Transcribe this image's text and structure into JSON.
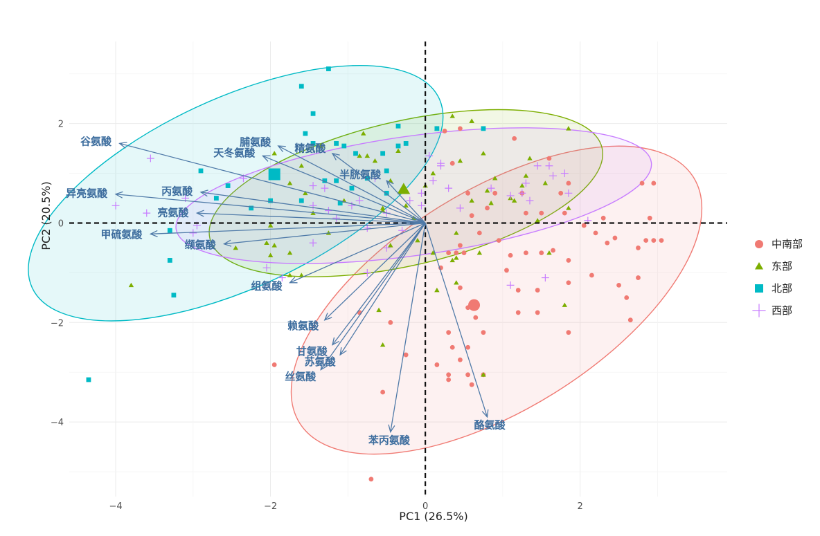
{
  "chart_data": {
    "type": "scatter",
    "subtype": "pca-biplot",
    "xlabel": "PC1 (26.5%)",
    "ylabel": "PC2 (20.5%)",
    "xlim": [
      -4.6,
      3.9
    ],
    "ylim": [
      -5.5,
      3.65
    ],
    "xticks": [
      -4,
      -2,
      0,
      2
    ],
    "yticks": [
      -4,
      -2,
      0,
      2
    ],
    "grid": true,
    "zero_lines": "dashed",
    "legend_position": "right",
    "arrow_color": "#4f7aa8",
    "label_color": "#3d6d9e",
    "series": [
      {
        "name": "中南部",
        "marker": "circle",
        "color": "#f07a73",
        "centroid": [
          0.63,
          -1.65
        ],
        "ellipse": {
          "center": [
            0.92,
            -1.55
          ],
          "rx": 3.0,
          "ry": 2.2,
          "angle_deg": 32
        },
        "points": [
          [
            0.25,
            1.85
          ],
          [
            0.45,
            1.9
          ],
          [
            0.35,
            1.2
          ],
          [
            0.55,
            0.6
          ],
          [
            0.6,
            0.15
          ],
          [
            0.8,
            0.3
          ],
          [
            0.9,
            0.6
          ],
          [
            0.7,
            -0.2
          ],
          [
            0.5,
            -0.6
          ],
          [
            0.3,
            -0.6
          ],
          [
            0.2,
            -0.9
          ],
          [
            0.45,
            -1.3
          ],
          [
            0.55,
            -1.7
          ],
          [
            0.65,
            -1.9
          ],
          [
            0.3,
            -2.2
          ],
          [
            0.75,
            -2.2
          ],
          [
            0.35,
            -2.5
          ],
          [
            0.55,
            -2.5
          ],
          [
            0.45,
            -2.75
          ],
          [
            0.15,
            -2.85
          ],
          [
            0.3,
            -3.05
          ],
          [
            0.55,
            -3.05
          ],
          [
            0.3,
            -3.15
          ],
          [
            0.6,
            -3.25
          ],
          [
            0.75,
            -3.05
          ],
          [
            -0.25,
            -2.65
          ],
          [
            -0.45,
            -2.0
          ],
          [
            -0.55,
            -3.4
          ],
          [
            -0.85,
            -1.8
          ],
          [
            -0.7,
            -5.15
          ],
          [
            -1.95,
            -2.85
          ],
          [
            1.1,
            -0.65
          ],
          [
            1.2,
            -1.35
          ],
          [
            1.45,
            -1.35
          ],
          [
            1.45,
            -1.8
          ],
          [
            1.2,
            -1.8
          ],
          [
            1.3,
            -0.6
          ],
          [
            1.5,
            -0.6
          ],
          [
            1.5,
            0.2
          ],
          [
            1.8,
            0.2
          ],
          [
            1.75,
            0.6
          ],
          [
            1.65,
            -0.55
          ],
          [
            1.85,
            -0.75
          ],
          [
            1.85,
            -1.2
          ],
          [
            1.85,
            -2.2
          ],
          [
            2.05,
            -0.05
          ],
          [
            2.2,
            -0.2
          ],
          [
            2.3,
            0.1
          ],
          [
            2.35,
            -0.4
          ],
          [
            2.45,
            -0.3
          ],
          [
            2.5,
            -1.25
          ],
          [
            2.6,
            -1.5
          ],
          [
            2.65,
            -1.95
          ],
          [
            2.75,
            -0.5
          ],
          [
            2.85,
            -0.35
          ],
          [
            2.9,
            0.1
          ],
          [
            2.95,
            0.8
          ],
          [
            2.8,
            0.8
          ],
          [
            2.95,
            -0.35
          ],
          [
            3.05,
            -0.35
          ],
          [
            2.75,
            -1.1
          ],
          [
            1.15,
            1.7
          ],
          [
            1.25,
            0.6
          ],
          [
            1.6,
            1.3
          ],
          [
            1.85,
            0.8
          ],
          [
            2.15,
            -1.05
          ],
          [
            1.3,
            0.2
          ],
          [
            0.95,
            -0.35
          ],
          [
            1.05,
            -0.95
          ],
          [
            0.4,
            -0.6
          ],
          [
            0.45,
            -0.45
          ]
        ]
      },
      {
        "name": "东部",
        "marker": "triangle",
        "color": "#7cae00",
        "centroid": [
          -0.28,
          0.68
        ],
        "ellipse": {
          "center": [
            -0.25,
            0.6
          ],
          "rx": 2.6,
          "ry": 1.45,
          "angle_deg": 13
        },
        "points": [
          [
            -3.8,
            -1.25
          ],
          [
            -2.45,
            -0.5
          ],
          [
            -2.05,
            -0.4
          ],
          [
            -2.0,
            -0.65
          ],
          [
            -1.95,
            -0.45
          ],
          [
            -1.75,
            -0.6
          ],
          [
            -1.95,
            1.4
          ],
          [
            -2.0,
            -0.05
          ],
          [
            -1.75,
            0.8
          ],
          [
            -1.6,
            1.15
          ],
          [
            -1.35,
            1.55
          ],
          [
            -1.55,
            0.6
          ],
          [
            -1.45,
            0.2
          ],
          [
            -1.25,
            -0.2
          ],
          [
            -1.05,
            0.45
          ],
          [
            -0.85,
            1.35
          ],
          [
            -0.8,
            1.8
          ],
          [
            -0.65,
            1.25
          ],
          [
            -0.55,
            0.3
          ],
          [
            -0.45,
            0.85
          ],
          [
            -0.45,
            -0.45
          ],
          [
            -0.35,
            1.45
          ],
          [
            -0.25,
            0.35
          ],
          [
            -0.15,
            0.1
          ],
          [
            -0.1,
            -0.35
          ],
          [
            0.0,
            0.75
          ],
          [
            0.1,
            1.0
          ],
          [
            0.15,
            1.9
          ],
          [
            0.35,
            2.15
          ],
          [
            0.45,
            1.25
          ],
          [
            0.6,
            2.05
          ],
          [
            0.75,
            1.4
          ],
          [
            0.8,
            0.65
          ],
          [
            0.85,
            0.4
          ],
          [
            0.6,
            2.05
          ],
          [
            0.9,
            0.9
          ],
          [
            1.1,
            0.5
          ],
          [
            1.15,
            0.45
          ],
          [
            1.3,
            0.95
          ],
          [
            1.35,
            1.3
          ],
          [
            1.25,
            0.75
          ],
          [
            1.45,
            0.05
          ],
          [
            1.55,
            0.8
          ],
          [
            1.6,
            -0.6
          ],
          [
            1.85,
            1.9
          ],
          [
            1.8,
            -1.65
          ],
          [
            1.85,
            0.3
          ],
          [
            0.1,
            -0.6
          ],
          [
            0.35,
            -0.75
          ],
          [
            0.4,
            -0.7
          ],
          [
            0.4,
            -0.2
          ],
          [
            0.6,
            0.45
          ],
          [
            0.7,
            -0.6
          ],
          [
            0.15,
            -1.35
          ],
          [
            0.4,
            -1.2
          ],
          [
            -0.6,
            -1.75
          ],
          [
            -0.55,
            -2.45
          ],
          [
            0.75,
            -3.05
          ],
          [
            -1.6,
            -1.05
          ],
          [
            -1.75,
            -1.05
          ],
          [
            -0.55,
            0.25
          ],
          [
            -0.75,
            1.35
          ]
        ]
      },
      {
        "name": "北部",
        "marker": "square",
        "color": "#00bac5",
        "centroid": [
          -1.95,
          0.98
        ],
        "ellipse": {
          "center": [
            -2.45,
            0.6
          ],
          "rx": 2.9,
          "ry": 1.9,
          "angle_deg": 25
        },
        "points": [
          [
            -4.35,
            -3.15
          ],
          [
            -3.25,
            -1.45
          ],
          [
            -3.3,
            -0.75
          ],
          [
            -3.3,
            -0.15
          ],
          [
            -2.9,
            1.05
          ],
          [
            -2.55,
            0.75
          ],
          [
            -2.25,
            0.3
          ],
          [
            -2.0,
            0.45
          ],
          [
            -1.6,
            0.45
          ],
          [
            -1.6,
            2.75
          ],
          [
            -1.45,
            2.2
          ],
          [
            -1.25,
            3.1
          ],
          [
            -1.45,
            1.6
          ],
          [
            -1.15,
            1.6
          ],
          [
            -1.15,
            0.85
          ],
          [
            -1.05,
            1.55
          ],
          [
            -0.9,
            1.4
          ],
          [
            -0.55,
            1.4
          ],
          [
            -0.5,
            1.05
          ],
          [
            -0.5,
            0.6
          ],
          [
            -0.35,
            1.55
          ],
          [
            -0.35,
            1.95
          ],
          [
            -0.25,
            1.6
          ],
          [
            0.15,
            1.9
          ],
          [
            0.75,
            1.9
          ],
          [
            -1.3,
            0.85
          ],
          [
            -1.1,
            0.4
          ],
          [
            -0.75,
            0.9
          ],
          [
            -0.95,
            0.7
          ],
          [
            -1.55,
            1.8
          ],
          [
            -2.7,
            0.5
          ]
        ]
      },
      {
        "name": "西部",
        "marker": "plus",
        "color": "#c77cff",
        "centroid": null,
        "ellipse": {
          "center": [
            -0.15,
            0.55
          ],
          "rx": 3.1,
          "ry": 1.2,
          "angle_deg": 8
        },
        "points": [
          [
            -4.0,
            0.35
          ],
          [
            -3.6,
            0.2
          ],
          [
            -3.55,
            1.3
          ],
          [
            -2.95,
            -0.05
          ],
          [
            -2.35,
            0.9
          ],
          [
            -2.05,
            -0.9
          ],
          [
            -1.85,
            -1.1
          ],
          [
            -1.45,
            0.35
          ],
          [
            -1.45,
            -0.4
          ],
          [
            -1.45,
            0.75
          ],
          [
            -1.3,
            0.7
          ],
          [
            -1.25,
            0.25
          ],
          [
            -1.15,
            0.1
          ],
          [
            -0.95,
            0.35
          ],
          [
            -0.85,
            0.45
          ],
          [
            -0.75,
            -0.1
          ],
          [
            -0.75,
            -1.0
          ],
          [
            -0.5,
            -0.5
          ],
          [
            -0.3,
            -0.15
          ],
          [
            -0.2,
            0.45
          ],
          [
            -0.05,
            0.6
          ],
          [
            0.05,
            1.35
          ],
          [
            0.1,
            0.85
          ],
          [
            0.2,
            1.15
          ],
          [
            0.3,
            0.7
          ],
          [
            0.45,
            0.3
          ],
          [
            0.85,
            0.7
          ],
          [
            1.1,
            0.55
          ],
          [
            1.25,
            0.6
          ],
          [
            1.35,
            0.45
          ],
          [
            1.45,
            1.15
          ],
          [
            1.6,
            1.15
          ],
          [
            1.65,
            0.95
          ],
          [
            1.8,
            1.0
          ],
          [
            1.85,
            0.6
          ],
          [
            2.1,
            0.05
          ],
          [
            1.55,
            -1.1
          ],
          [
            1.1,
            -1.25
          ],
          [
            0.2,
            1.2
          ],
          [
            -0.5,
            0.2
          ],
          [
            -0.65,
            0.9
          ],
          [
            -0.05,
            0.35
          ],
          [
            1.3,
            0.8
          ],
          [
            -3.1,
            0.5
          ],
          [
            -3.0,
            -0.2
          ]
        ]
      }
    ],
    "vectors": [
      {
        "label": "谷氨酸",
        "end": [
          -3.95,
          1.6
        ]
      },
      {
        "label": "异亮氨酸",
        "end": [
          -4.0,
          0.58
        ]
      },
      {
        "label": "甲硫氨酸",
        "end": [
          -3.55,
          -0.22
        ]
      },
      {
        "label": "丙氨酸",
        "end": [
          -2.9,
          0.62
        ]
      },
      {
        "label": "亮氨酸",
        "end": [
          -2.95,
          0.2
        ]
      },
      {
        "label": "缬氨酸",
        "end": [
          -2.6,
          -0.42
        ]
      },
      {
        "label": "天冬氨酸",
        "end": [
          -2.1,
          1.35
        ]
      },
      {
        "label": "脯氨酸",
        "end": [
          -1.9,
          1.55
        ]
      },
      {
        "label": "精氨酸",
        "end": [
          -1.2,
          1.4
        ]
      },
      {
        "label": "半胱氨酸",
        "end": [
          -0.5,
          0.85
        ]
      },
      {
        "label": "组氨酸",
        "end": [
          -1.75,
          -1.2
        ]
      },
      {
        "label": "赖氨酸",
        "end": [
          -1.3,
          -1.95
        ]
      },
      {
        "label": "甘氨酸",
        "end": [
          -1.2,
          -2.45
        ]
      },
      {
        "label": "苏氨酸",
        "end": [
          -1.1,
          -2.65
        ]
      },
      {
        "label": "丝氨酸",
        "end": [
          -1.35,
          -2.95
        ]
      },
      {
        "label": "苯丙氨酸",
        "end": [
          -0.45,
          -4.2
        ]
      },
      {
        "label": "酪氨酸",
        "end": [
          0.8,
          -3.9
        ]
      }
    ]
  }
}
